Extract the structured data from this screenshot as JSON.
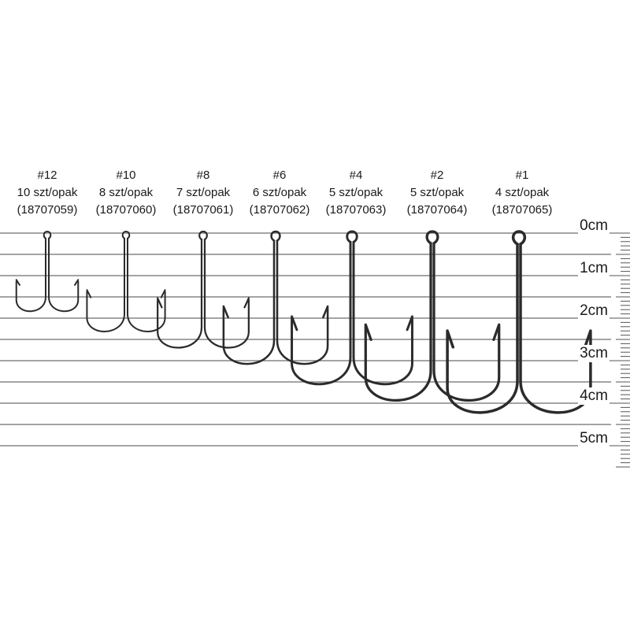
{
  "scale": {
    "labels": [
      "0cm",
      "1cm",
      "2cm",
      "3cm",
      "4cm",
      "5cm"
    ]
  },
  "hooks": [
    {
      "size": "#12",
      "pack": "10 szt/opak",
      "code": "(18707059)",
      "length_cm": 1.9
    },
    {
      "size": "#10",
      "pack": "8 szt/opak",
      "code": "(18707060)",
      "length_cm": 2.4
    },
    {
      "size": "#8",
      "pack": "7 szt/opak",
      "code": "(18707061)",
      "length_cm": 2.8
    },
    {
      "size": "#6",
      "pack": "6 szt/opak",
      "code": "(18707062)",
      "length_cm": 3.2
    },
    {
      "size": "#4",
      "pack": "5 szt/opak",
      "code": "(18707063)",
      "length_cm": 3.7
    },
    {
      "size": "#2",
      "pack": "5 szt/opak",
      "code": "(18707064)",
      "length_cm": 4.1
    },
    {
      "size": "#1",
      "pack": "4 szt/opak",
      "code": "(18707065)",
      "length_cm": 4.4
    }
  ],
  "colors": {
    "line": "#6e6e6e",
    "hook": "#2b2b2b",
    "text": "#1a1a1a"
  }
}
